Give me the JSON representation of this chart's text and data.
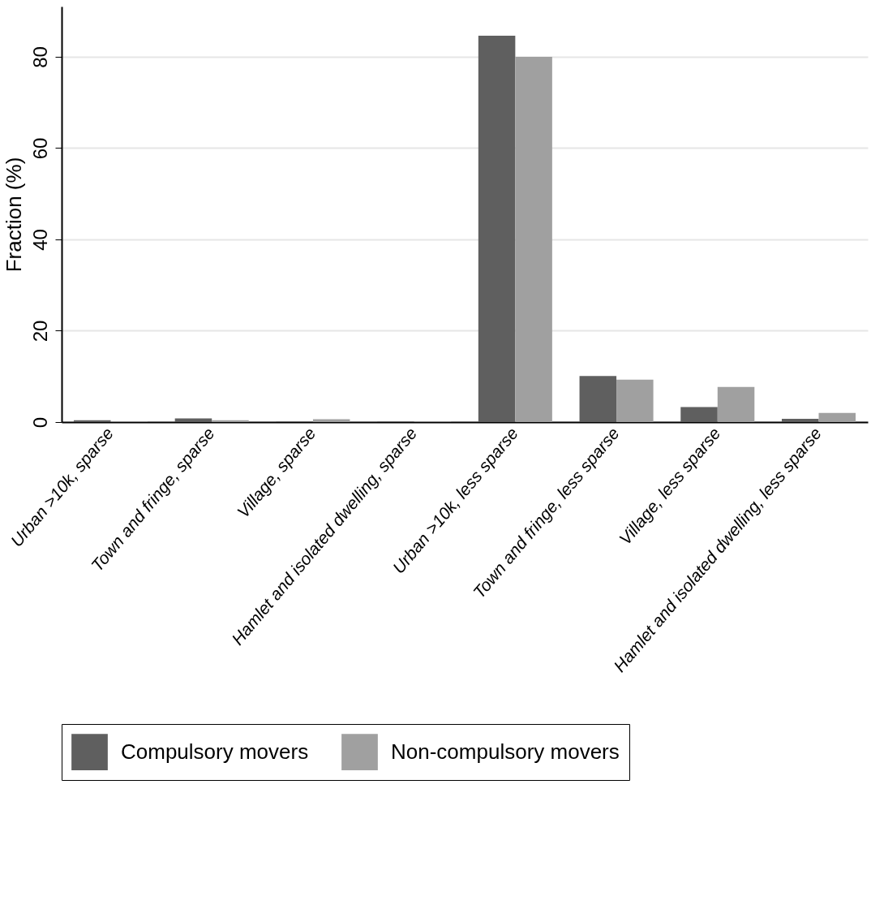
{
  "chart_data": {
    "type": "bar",
    "ylabel": "Fraction (%)",
    "categories": [
      "Urban >10k, sparse",
      "Town and fringe, sparse",
      "Village, sparse",
      "Hamlet and isolated dwelling, sparse",
      "Urban >10k, less sparse",
      "Town and fringe, less sparse",
      "Village, less sparse",
      "Hamlet and isolated dwelling, less sparse"
    ],
    "series": [
      {
        "name": "Compulsory movers",
        "color": "#5f5f5f",
        "values": [
          0.4,
          0.8,
          0.1,
          0.1,
          84.6,
          10.1,
          3.3,
          0.7
        ]
      },
      {
        "name": "Non-compulsory movers",
        "color": "#a0a0a0",
        "values": [
          0.1,
          0.4,
          0.6,
          0.1,
          80.0,
          9.3,
          7.7,
          2.0
        ]
      }
    ],
    "ylim": [
      0,
      91
    ],
    "yticks": [
      0,
      20,
      40,
      60,
      80
    ],
    "grid": "y",
    "legend": "bottom"
  }
}
